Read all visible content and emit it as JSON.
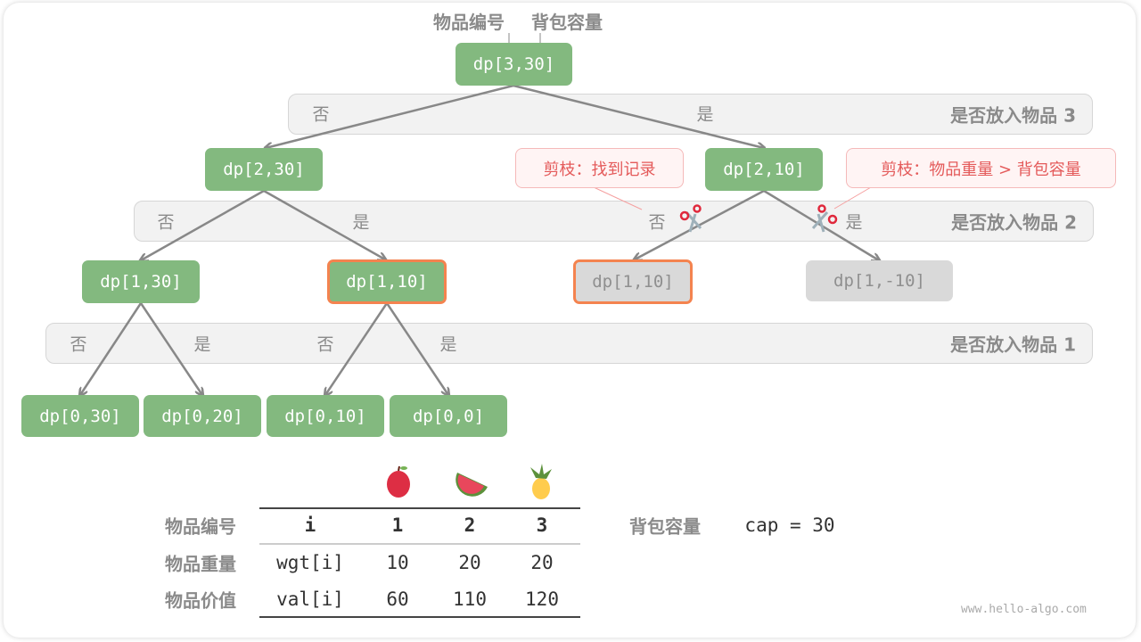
{
  "top_labels": {
    "item_index": "物品编号",
    "capacity": "背包容量"
  },
  "bands": [
    {
      "title": "是否放入物品 3",
      "choices": [
        "否",
        "是"
      ]
    },
    {
      "title": "是否放入物品 2",
      "choices": [
        "否",
        "是",
        "否",
        "是"
      ]
    },
    {
      "title": "是否放入物品 1",
      "choices": [
        "否",
        "是",
        "否",
        "是"
      ]
    }
  ],
  "nodes": [
    {
      "label": "dp[3,30]",
      "state": "active"
    },
    {
      "label": "dp[2,30]",
      "state": "active"
    },
    {
      "label": "dp[2,10]",
      "state": "active"
    },
    {
      "label": "dp[1,30]",
      "state": "active"
    },
    {
      "label": "dp[1,10]",
      "state": "active-highlighted"
    },
    {
      "label": "dp[1,10]",
      "state": "pruned-highlighted"
    },
    {
      "label": "dp[1,-10]",
      "state": "pruned"
    },
    {
      "label": "dp[0,30]",
      "state": "active"
    },
    {
      "label": "dp[0,20]",
      "state": "active"
    },
    {
      "label": "dp[0,10]",
      "state": "active"
    },
    {
      "label": "dp[0,0]",
      "state": "active"
    }
  ],
  "callouts": [
    "剪枝：找到记录",
    "剪枝：物品重量 > 背包容量"
  ],
  "table": {
    "row_labels": [
      "物品编号",
      "物品重量",
      "物品价值"
    ],
    "header": [
      "i",
      "1",
      "2",
      "3"
    ],
    "rows": [
      [
        "wgt[i]",
        "10",
        "20",
        "20"
      ],
      [
        "val[i]",
        "60",
        "110",
        "120"
      ]
    ],
    "icons": [
      "apple-icon",
      "watermelon-icon",
      "pineapple-icon"
    ]
  },
  "capacity": {
    "label": "背包容量",
    "value": "cap = 30"
  },
  "watermark": "www.hello-algo.com",
  "colors": {
    "node": "#83b97f",
    "pruned_node": "#d9d9d9",
    "highlight": "#f4834f",
    "callout_text": "#e45a5a",
    "edge": "#888888"
  }
}
